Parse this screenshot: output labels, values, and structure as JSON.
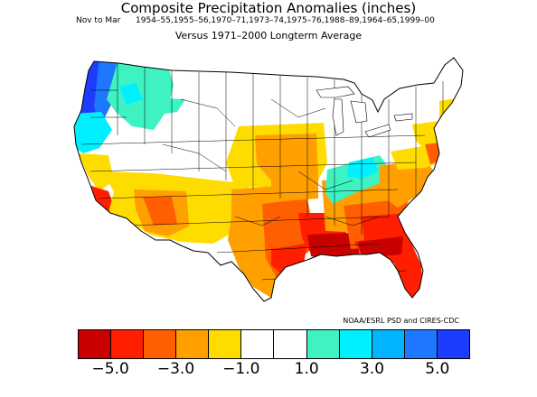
{
  "header": {
    "title": "Composite Precipitation Anomalies (inches)",
    "season": "Nov to Mar",
    "years": "1954–55,1955–56,1970–71,1973–74,1975–76,1988–89,1964–65,1999–00",
    "subtitle": "Versus 1971–2000 Longterm Average"
  },
  "credit": "NOAA/ESRL PSD and CIRES-CDC",
  "legend": {
    "colors": [
      "#c80000",
      "#ff1e00",
      "#ff5f00",
      "#ff9f00",
      "#ffdc00",
      "#ffffff",
      "#ffffff",
      "#3ef3c1",
      "#00f0ff",
      "#00b4ff",
      "#1e78ff",
      "#1e3cff"
    ],
    "tick_labels": [
      "−5.0",
      "−3.0",
      "−1.0",
      "1.0",
      "3.0",
      "5.0"
    ],
    "tick_values": [
      -5.0,
      -3.0,
      -1.0,
      1.0,
      3.0,
      5.0
    ]
  },
  "map": {
    "region": "Contiguous United States climate divisions",
    "regions": [
      {
        "name": "pacific-northwest-coast",
        "anomaly": 5.5
      },
      {
        "name": "washington-interior",
        "anomaly": 1.5
      },
      {
        "name": "oregon-interior",
        "anomaly": 2.5
      },
      {
        "name": "california-coast",
        "anomaly": -1.5
      },
      {
        "name": "southern-california",
        "anomaly": -5.0
      },
      {
        "name": "desert-southwest",
        "anomaly": -1.5
      },
      {
        "name": "texas-new-mexico",
        "anomaly": -2.5
      },
      {
        "name": "gulf-coast",
        "anomaly": -4.0
      },
      {
        "name": "florida-georgia",
        "anomaly": -5.0
      },
      {
        "name": "southeast-interior",
        "anomaly": -2.5
      },
      {
        "name": "central-plains",
        "anomaly": -1.5
      },
      {
        "name": "ohio-valley",
        "anomaly": 1.5
      },
      {
        "name": "mid-atlantic",
        "anomaly": -2.0
      },
      {
        "name": "new-england",
        "anomaly": -1.0
      }
    ]
  }
}
